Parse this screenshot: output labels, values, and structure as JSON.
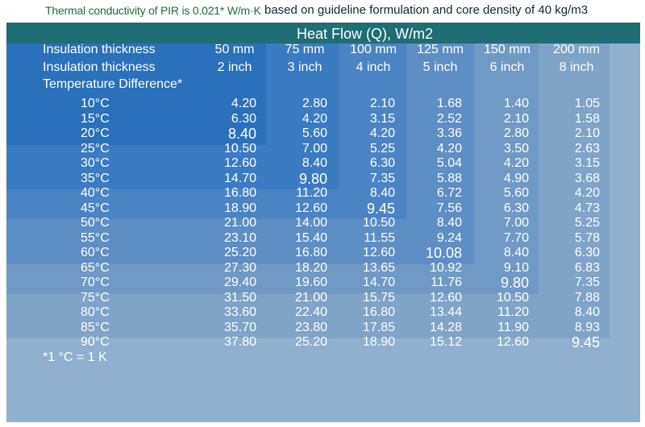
{
  "caption": {
    "conductivity_note": "Thermal conductivity of PIR is 0.021* W/m·K",
    "basis_note": "based on guideline formulation and core density of 40 kg/m3"
  },
  "chart_data": {
    "type": "table",
    "title": "Heat Flow (Q), W/m2",
    "row_header_labels": [
      "Insulation thickness",
      "Insulation thickness",
      "Temperature Difference*"
    ],
    "columns_mm": [
      "50 mm",
      "75 mm",
      "100 mm",
      "125 mm",
      "150 mm",
      "200 mm"
    ],
    "columns_inch": [
      "2 inch",
      "3 inch",
      "4 inch",
      "5 inch",
      "6 inch",
      "8 inch"
    ],
    "temperature_differences": [
      "10°C",
      "15°C",
      "20°C",
      "25°C",
      "30°C",
      "35°C",
      "40°C",
      "45°C",
      "50°C",
      "55°C",
      "60°C",
      "65°C",
      "70°C",
      "75°C",
      "80°C",
      "85°C",
      "90°C"
    ],
    "values": [
      [
        "4.20",
        "2.80",
        "2.10",
        "1.68",
        "1.40",
        "1.05"
      ],
      [
        "6.30",
        "4.20",
        "3.15",
        "2.52",
        "2.10",
        "1.58"
      ],
      [
        "8.40",
        "5.60",
        "4.20",
        "3.36",
        "2.80",
        "2.10"
      ],
      [
        "10.50",
        "7.00",
        "5.25",
        "4.20",
        "3.50",
        "2.63"
      ],
      [
        "12.60",
        "8.40",
        "6.30",
        "5.04",
        "4.20",
        "3.15"
      ],
      [
        "14.70",
        "9.80",
        "7.35",
        "5.88",
        "4.90",
        "3.68"
      ],
      [
        "16.80",
        "11.20",
        "8.40",
        "6.72",
        "5.60",
        "4.20"
      ],
      [
        "18.90",
        "12.60",
        "9.45",
        "7.56",
        "6.30",
        "4.73"
      ],
      [
        "21.00",
        "14.00",
        "10.50",
        "8.40",
        "7.00",
        "5.25"
      ],
      [
        "23.10",
        "15.40",
        "11.55",
        "9.24",
        "7.70",
        "5.78"
      ],
      [
        "25.20",
        "16.80",
        "12.60",
        "10.08",
        "8.40",
        "6.30"
      ],
      [
        "27.30",
        "18.20",
        "13.65",
        "10.92",
        "9.10",
        "6.83"
      ],
      [
        "29.40",
        "19.60",
        "14.70",
        "11.76",
        "9.80",
        "7.35"
      ],
      [
        "31.50",
        "21.00",
        "15.75",
        "12.60",
        "10.50",
        "7.88"
      ],
      [
        "33.60",
        "22.40",
        "16.80",
        "13.44",
        "11.20",
        "8.40"
      ],
      [
        "35.70",
        "23.80",
        "17.85",
        "14.28",
        "11.90",
        "8.93"
      ],
      [
        "37.80",
        "25.20",
        "18.90",
        "15.12",
        "12.60",
        "9.45"
      ]
    ],
    "footnote": "*1 °C = 1 K",
    "colors": {
      "header_bar": "#1f6d75",
      "text": "#ffffff",
      "caption_green": "#1e6b3a"
    }
  }
}
